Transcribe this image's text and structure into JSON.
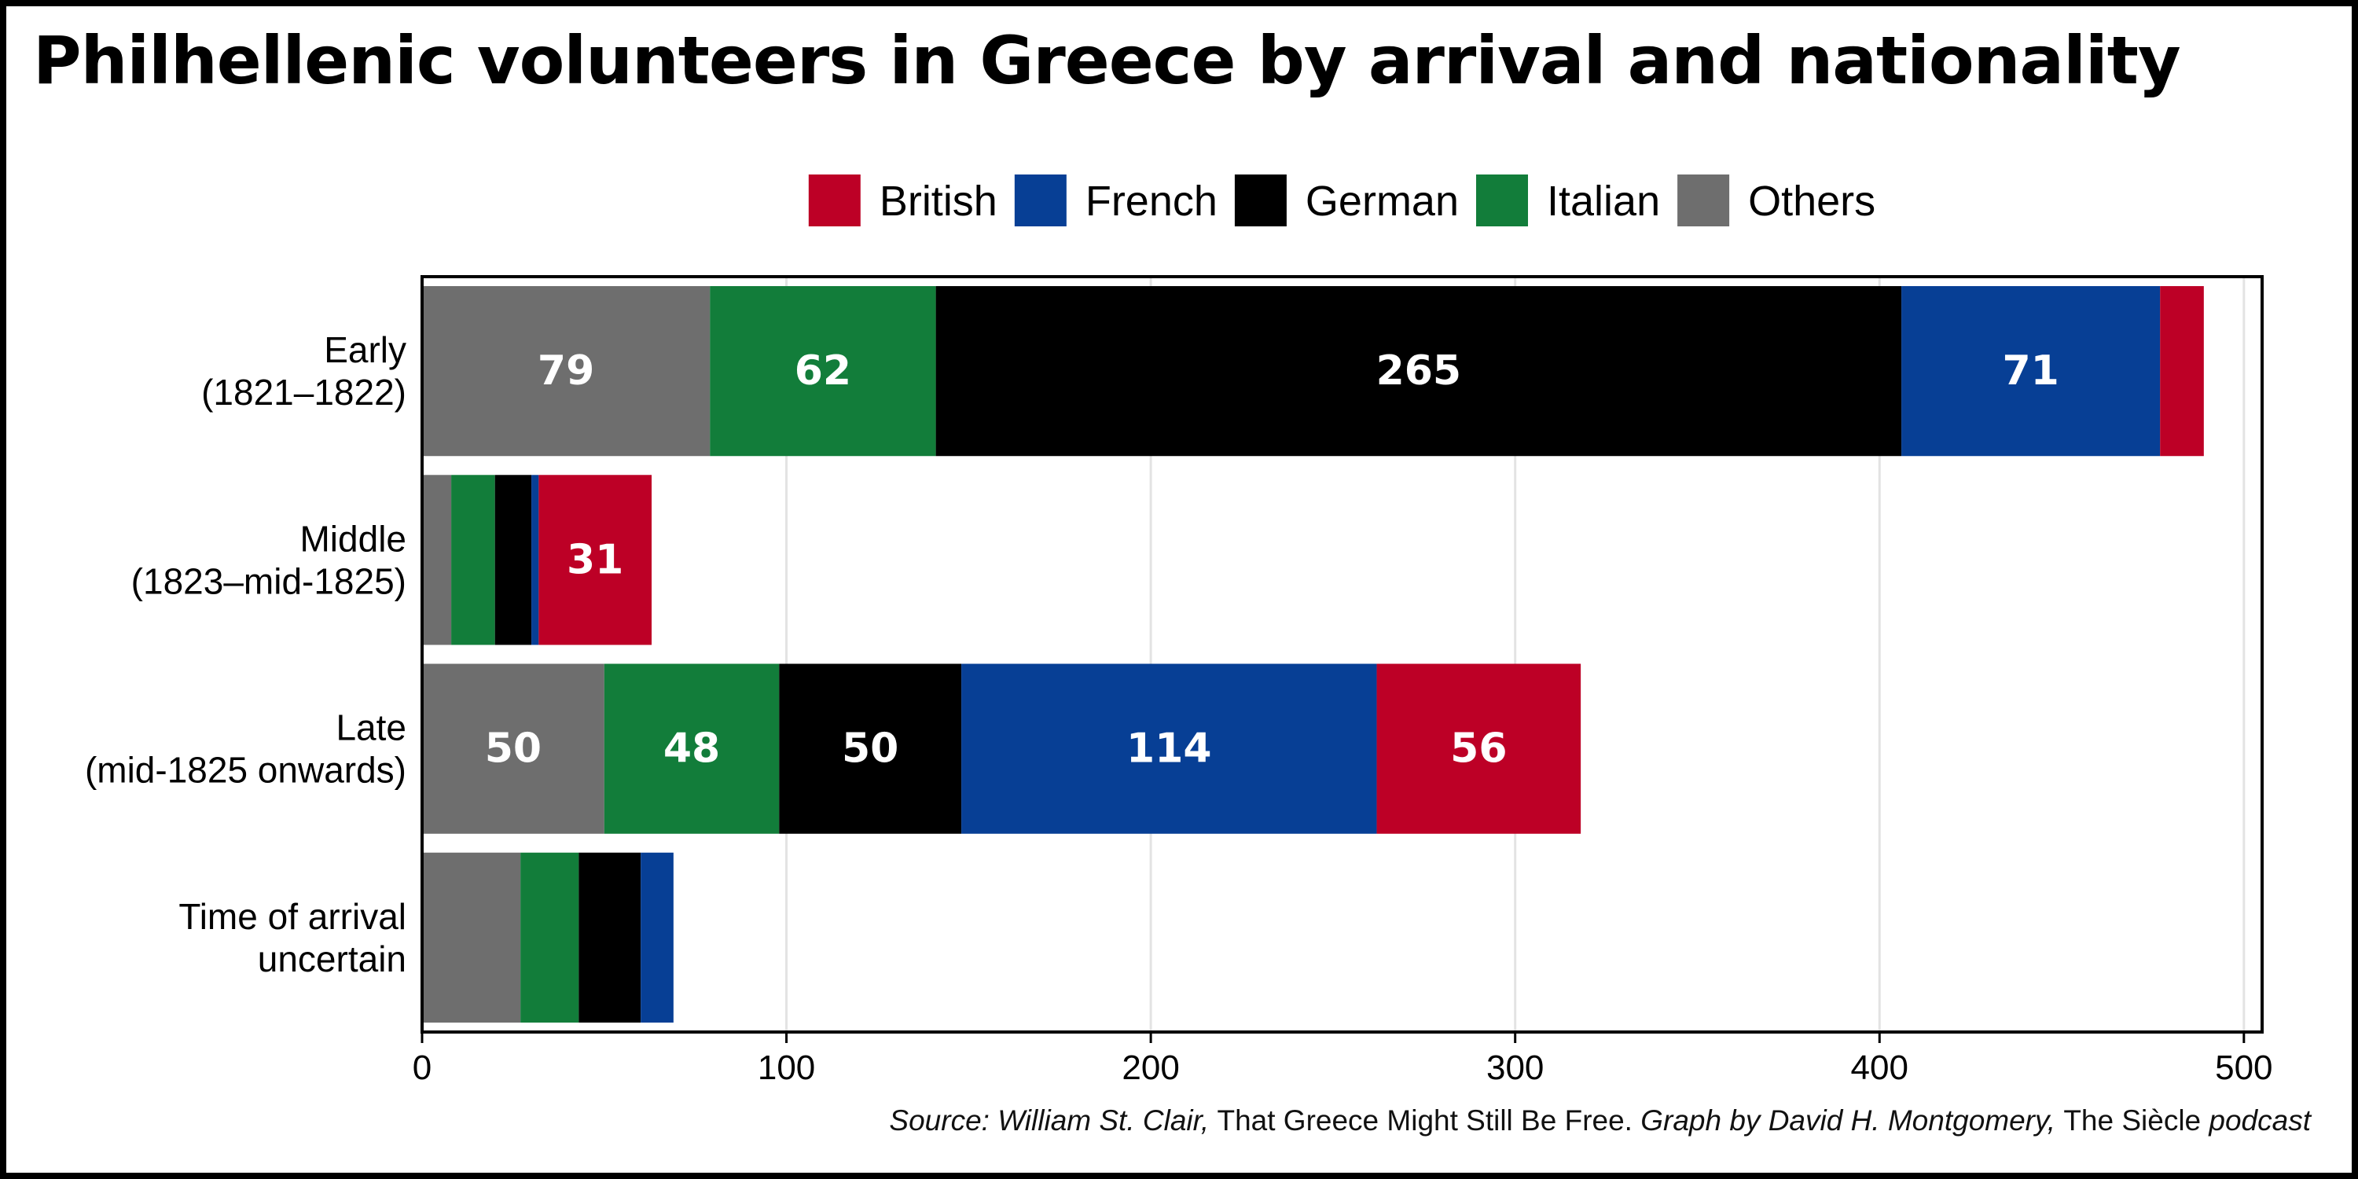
{
  "chart_data": {
    "type": "bar",
    "orientation": "horizontal",
    "stacked": true,
    "title": "Philhellenic volunteers in Greece by arrival and nationality",
    "categories": [
      [
        "Early",
        "(1821–1822)"
      ],
      [
        "Middle",
        "(1823–mid-1825)"
      ],
      [
        "Late",
        "(mid-1825 onwards)"
      ],
      [
        "Time of arrival",
        "uncertain"
      ]
    ],
    "series": [
      {
        "name": "Others",
        "color": "#6e6e6e",
        "values": [
          79,
          8,
          50,
          27
        ]
      },
      {
        "name": "Italian",
        "color": "#127d3a",
        "values": [
          62,
          12,
          48,
          16
        ]
      },
      {
        "name": "German",
        "color": "#000000",
        "values": [
          265,
          10,
          50,
          17
        ]
      },
      {
        "name": "French",
        "color": "#073f95",
        "values": [
          71,
          2,
          114,
          9
        ]
      },
      {
        "name": "British",
        "color": "#bd0026",
        "values": [
          12,
          31,
          56,
          0
        ]
      }
    ],
    "data_labels": [
      {
        "category": 0,
        "series": "Others",
        "text": "79"
      },
      {
        "category": 0,
        "series": "Italian",
        "text": "62"
      },
      {
        "category": 0,
        "series": "German",
        "text": "265"
      },
      {
        "category": 0,
        "series": "French",
        "text": "71"
      },
      {
        "category": 1,
        "series": "British",
        "text": "31"
      },
      {
        "category": 2,
        "series": "Others",
        "text": "50"
      },
      {
        "category": 2,
        "series": "Italian",
        "text": "48"
      },
      {
        "category": 2,
        "series": "German",
        "text": "50"
      },
      {
        "category": 2,
        "series": "French",
        "text": "114"
      },
      {
        "category": 2,
        "series": "British",
        "text": "56"
      }
    ],
    "legend": {
      "placement": "top",
      "order": [
        "British",
        "French",
        "German",
        "Italian",
        "Others"
      ]
    },
    "xlim": [
      0,
      505
    ],
    "xticks": [
      0,
      100,
      200,
      300,
      400,
      500
    ],
    "grid": "vertical",
    "xlabel": "",
    "ylabel": ""
  },
  "source": {
    "prefix": "Source: William St. Clair, ",
    "book": "That Greece Might Still Be Free.",
    "middle": " Graph by David H. Montgomery, ",
    "podcast": "The Siècle",
    "suffix": " podcast"
  }
}
